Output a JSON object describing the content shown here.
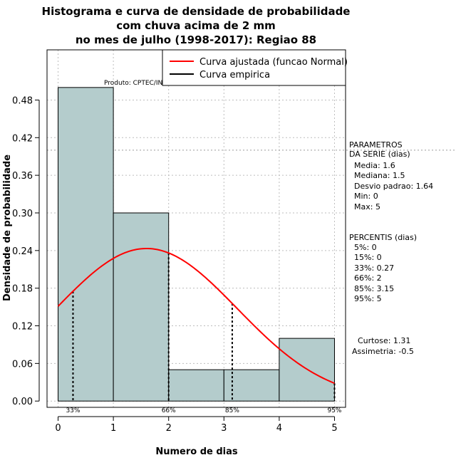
{
  "chart_data": {
    "type": "bar",
    "title_lines": [
      "Histograma e curva de densidade de probabilidade",
      "com chuva acima de 2 mm",
      "no mes de julho (1998-2017): Regiao 88"
    ],
    "xlabel": "Numero de dias",
    "ylabel": "Densidade de probabilidade",
    "xlim": [
      -0.2,
      5.2
    ],
    "ylim": [
      -0.01,
      0.56
    ],
    "x_ticks": [
      0,
      1,
      2,
      3,
      4,
      5
    ],
    "y_ticks": [
      0.0,
      0.06,
      0.12,
      0.18,
      0.24,
      0.3,
      0.36,
      0.42,
      0.48
    ],
    "y_tick_labels": [
      "0.00",
      "0.06",
      "0.12",
      "0.18",
      "0.24",
      "0.30",
      "0.36",
      "0.42",
      "0.48"
    ],
    "bins": [
      {
        "x0": 0,
        "x1": 1,
        "density": 0.5
      },
      {
        "x0": 1,
        "x1": 2,
        "density": 0.3
      },
      {
        "x0": 2,
        "x1": 3,
        "density": 0.05
      },
      {
        "x0": 3,
        "x1": 4,
        "density": 0.05
      },
      {
        "x0": 4,
        "x1": 5,
        "density": 0.1
      }
    ],
    "bar_color": "#b4cccc",
    "curve_color": "#ff0000",
    "normal_fit": {
      "mean": 1.6,
      "sd": 1.64,
      "from": 0,
      "to": 5
    },
    "hline_y": 0.4,
    "percentile_lines": [
      {
        "label": "33%",
        "x": 0.27
      },
      {
        "label": "66%",
        "x": 2
      },
      {
        "label": "85%",
        "x": 3.15
      },
      {
        "label": "95%",
        "x": 5
      }
    ],
    "legend": {
      "placement": "top-right",
      "items": [
        {
          "label": "Curva ajustada (funcao Normal)",
          "color": "#ff0000"
        },
        {
          "label": "Curva empirica",
          "color": "#000000"
        }
      ]
    },
    "credit": "Produto: CPTEC/INPE"
  },
  "side_panel": {
    "params_title": [
      "PARAMETROS",
      "DA SERIE (dias)"
    ],
    "params": [
      "Media: 1.6",
      "Mediana: 1.5",
      "Desvio padrao: 1.64",
      "Min: 0",
      "Max: 5"
    ],
    "percentis_title": "PERCENTIS (dias)",
    "percentis": [
      "5%: 0",
      "15%: 0",
      "33%: 0.27",
      "66%: 2",
      "85%: 3.15",
      "95%: 5"
    ],
    "shape": [
      "Curtose: 1.31",
      "Assimetria: -0.5"
    ]
  }
}
